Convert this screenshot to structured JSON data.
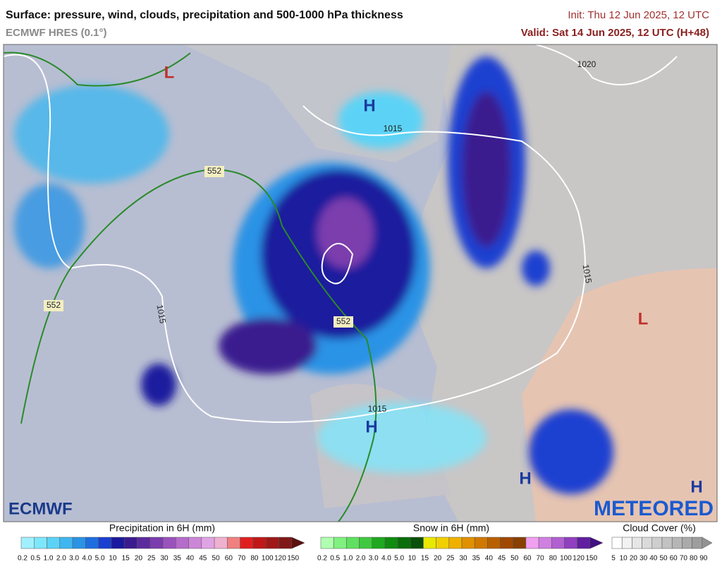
{
  "header": {
    "title": "Surface: pressure, wind, clouds, precipitation and 500-1000 hPa thickness",
    "model": "ECMWF HRES (0.1°)",
    "init": "Init: Thu 12 Jun 2025, 12 UTC",
    "valid": "Valid: Sat 14 Jun 2025, 12 UTC (H+48)"
  },
  "map": {
    "pressure_centers": [
      {
        "label": "L",
        "color": "#c0302a"
      },
      {
        "label": "H",
        "color": "#1a3aa0"
      },
      {
        "label": "L",
        "color": "#c0302a"
      },
      {
        "label": "H",
        "color": "#1a3aa0"
      },
      {
        "label": "H",
        "color": "#1a3aa0"
      },
      {
        "label": "H",
        "color": "#1a3aa0"
      }
    ],
    "isobar_labels": [
      "1020",
      "1015",
      "1015",
      "1015",
      "1015"
    ],
    "thickness_labels": [
      "552",
      "552",
      "552"
    ]
  },
  "logos": {
    "left": "ECMWF",
    "right": "METEORED"
  },
  "legend": {
    "precipitation": {
      "title": "Precipitation in 6H (mm)",
      "labels": [
        "0.2",
        "0.5",
        "1.0",
        "2.0",
        "3.0",
        "4.0",
        "5.0",
        "10",
        "15",
        "20",
        "25",
        "30",
        "35",
        "40",
        "45",
        "50",
        "60",
        "70",
        "80",
        "100",
        "120",
        "150"
      ],
      "colors": [
        "#a0f0ff",
        "#7ee6fb",
        "#5cd3f6",
        "#3fb6ef",
        "#2a93e5",
        "#1f6ee0",
        "#1b3fd0",
        "#1b1a9e",
        "#3a1c8f",
        "#5b2a9e",
        "#7b3cad",
        "#9a52bd",
        "#b56ccb",
        "#cc86d8",
        "#e0a3e4",
        "#f0b0d0",
        "#f08080",
        "#e02020",
        "#c01818",
        "#a01818",
        "#801818",
        "#5a1010"
      ]
    },
    "snow": {
      "title": "Snow in 6H (mm)",
      "labels": [
        "0.2",
        "0.5",
        "1.0",
        "2.0",
        "3.0",
        "4.0",
        "5.0",
        "10",
        "15",
        "20",
        "25",
        "30",
        "35",
        "40",
        "45",
        "50",
        "60",
        "70",
        "80",
        "100",
        "120",
        "150"
      ],
      "colors": [
        "#b0ffb0",
        "#80f080",
        "#60e060",
        "#40c840",
        "#20a820",
        "#108c10",
        "#0a6e0a",
        "#0a500a",
        "#e8e800",
        "#f0d000",
        "#f0b000",
        "#e09000",
        "#d07800",
        "#b86000",
        "#a04800",
        "#884000",
        "#f0a0f0",
        "#d080e0",
        "#b060d0",
        "#9040c0",
        "#6020a0",
        "#401080"
      ]
    },
    "cloud": {
      "title": "Cloud Cover (%)",
      "labels": [
        "5",
        "10",
        "20",
        "30",
        "40",
        "50",
        "60",
        "70",
        "80",
        "90"
      ],
      "colors": [
        "#ffffff",
        "#f2f2f2",
        "#e6e6e6",
        "#dadada",
        "#cecece",
        "#c2c2c2",
        "#b6b6b6",
        "#aaaaaa",
        "#9e9e9e",
        "#929292"
      ]
    }
  }
}
